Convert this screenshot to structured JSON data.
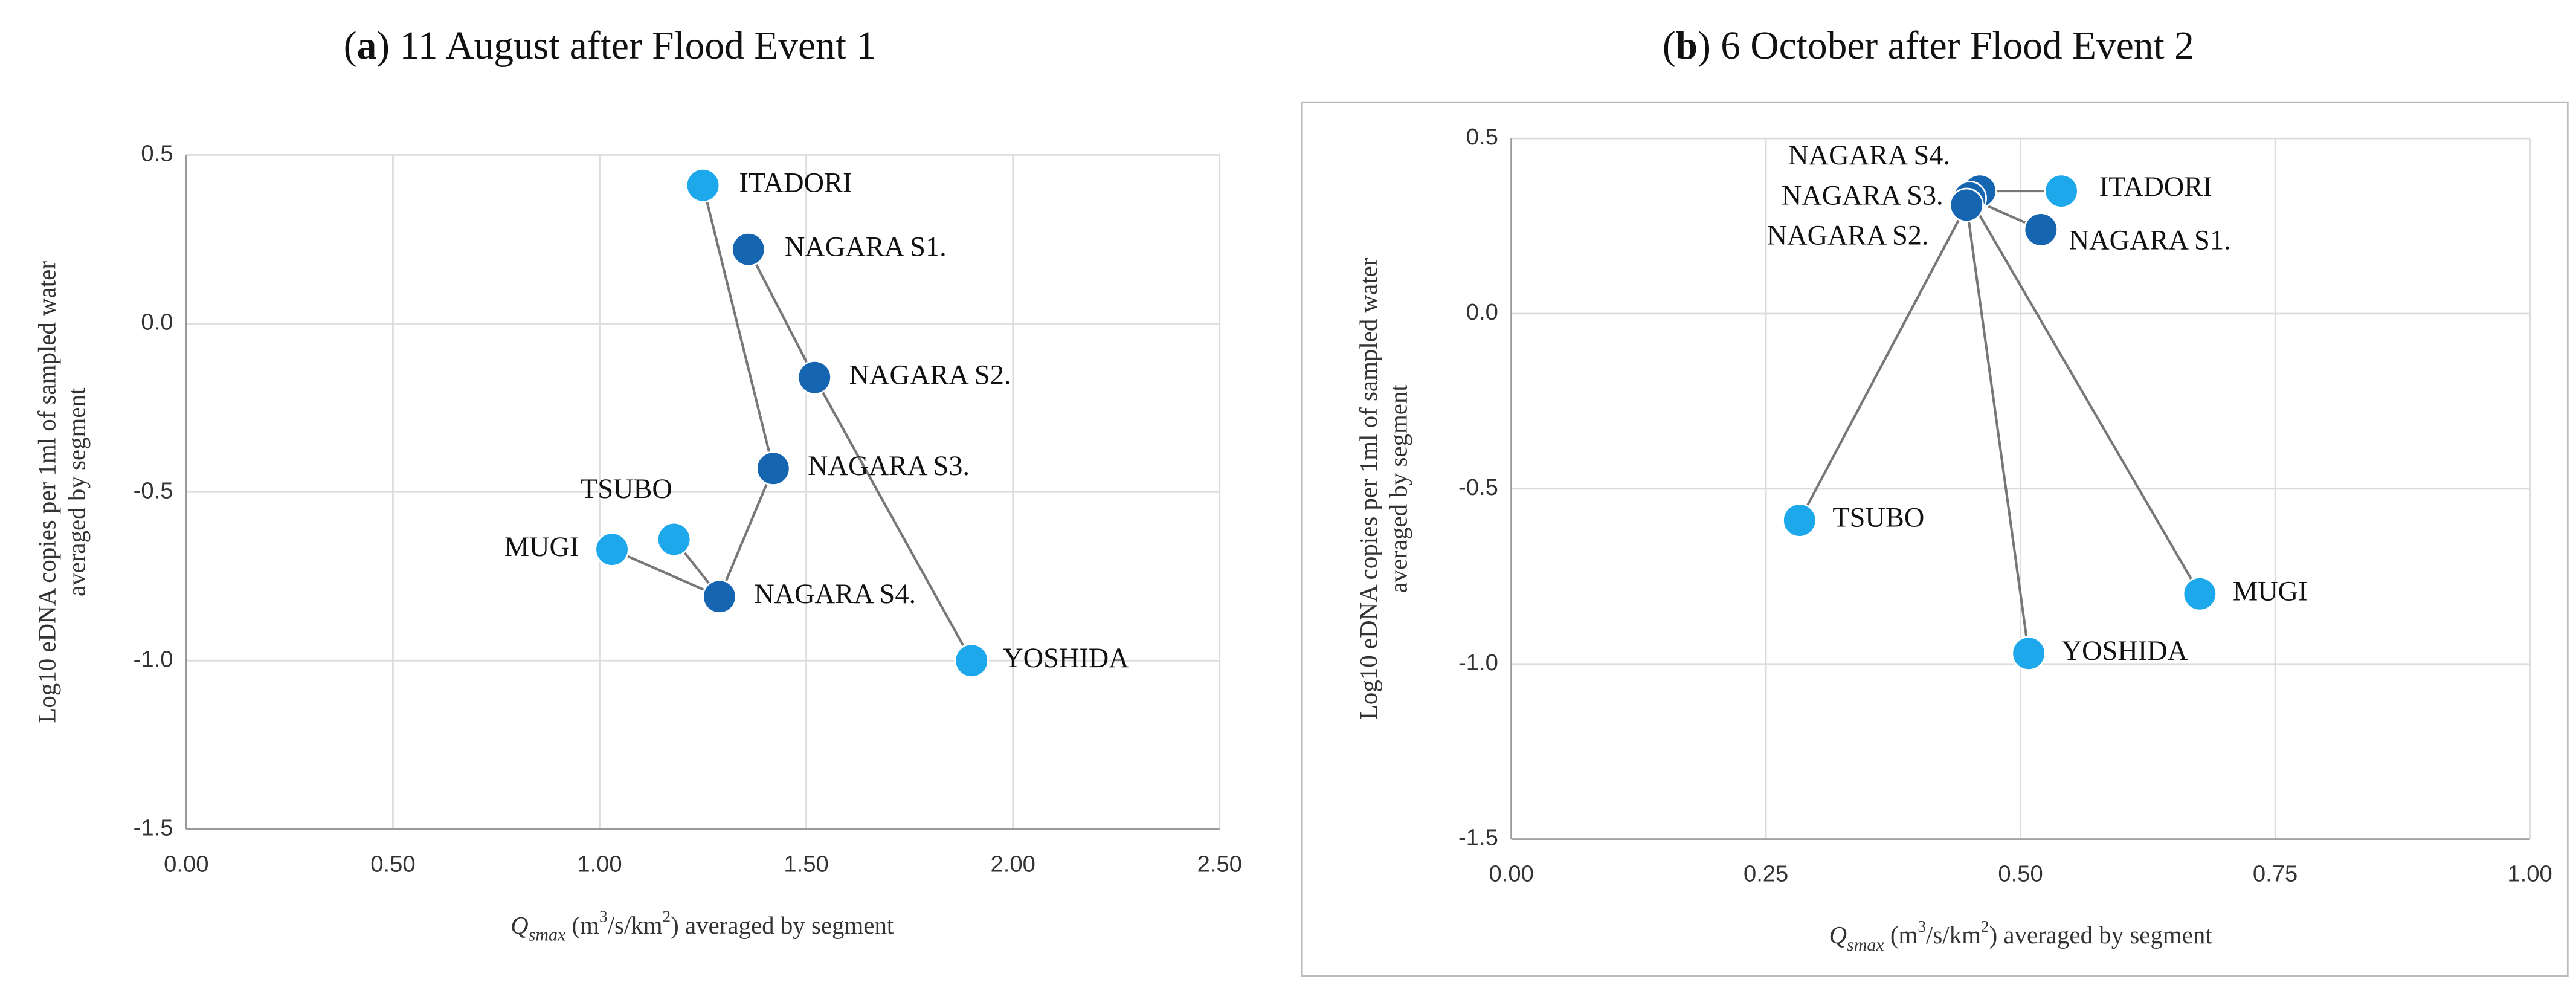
{
  "chart_data": [
    {
      "type": "scatter",
      "title": [
        "(",
        "a",
        ") 11 August after Flood Event 1"
      ],
      "x_label": [
        "Q",
        "smax",
        " (m",
        "3",
        "/s/km",
        "2",
        ") averaged by segment"
      ],
      "y_label": [
        "Log10 eDNA copies per 1ml of sampled water",
        "averaged by segment"
      ],
      "labels": [
        "ITADORI",
        "NAGARA S1.",
        "NAGARA S2.",
        "NAGARA S3.",
        "TSUBO",
        "MUGI",
        "NAGARA S4.",
        "YOSHIDA"
      ],
      "x": [
        1.25,
        1.36,
        1.52,
        1.42,
        1.18,
        1.03,
        1.29,
        1.9
      ],
      "y": [
        0.41,
        0.22,
        -0.16,
        -0.43,
        -0.64,
        -0.67,
        -0.81,
        -1.0
      ],
      "colors": [
        "#1ea8ec",
        "#1565b0",
        "#1565b0",
        "#1565b0",
        "#1ea8ec",
        "#1ea8ec",
        "#1565b0",
        "#1ea8ec"
      ],
      "edges": [
        [
          0,
          3
        ],
        [
          1,
          2
        ],
        [
          2,
          7
        ],
        [
          3,
          6
        ],
        [
          6,
          5
        ],
        [
          6,
          4
        ]
      ],
      "xlim": [
        0,
        2.5
      ],
      "xticks": [
        {
          "value": 0,
          "label": "0.00"
        },
        {
          "value": 0.5,
          "label": "0.50"
        },
        {
          "value": 1,
          "label": "1.00"
        },
        {
          "value": 1.5,
          "label": "1.50"
        },
        {
          "value": 2,
          "label": "2.00"
        },
        {
          "value": 2.5,
          "label": "2.50"
        }
      ],
      "ylim": [
        -1.5,
        0.5
      ],
      "yticks": [
        -1.5,
        {
          "value": -1,
          "label": "-1.0"
        },
        -0.5,
        {
          "value": 0,
          "label": "0.0"
        },
        0.5
      ],
      "grid": true
    },
    {
      "type": "scatter",
      "title": [
        "(",
        "b",
        ") 6 October after Flood Event 2"
      ],
      "x_label": [
        "Q",
        "smax",
        " (m",
        "3",
        "/s/km",
        "2",
        ") averaged by segment"
      ],
      "y_label": [
        "Log10 eDNA copies per 1ml of sampled water",
        "averaged by segment"
      ],
      "labels": [
        "ITADORI",
        "NAGARA S1.",
        "NAGARA S4.",
        "NAGARA S3.",
        "NAGARA S2.",
        "TSUBO",
        "MUGI",
        "YOSHIDA"
      ],
      "x": [
        0.54,
        0.52,
        0.46,
        0.45,
        0.447,
        0.283,
        0.676,
        0.508
      ],
      "y": [
        0.35,
        0.24,
        0.35,
        0.33,
        0.31,
        -0.59,
        -0.8,
        -0.97
      ],
      "colors": [
        "#1ea8ec",
        "#1565b0",
        "#1565b0",
        "#1565b0",
        "#1565b0",
        "#1ea8ec",
        "#1ea8ec",
        "#1ea8ec"
      ],
      "edges": [
        [
          0,
          2
        ],
        [
          1,
          3
        ],
        [
          5,
          4
        ],
        [
          7,
          4
        ],
        [
          6,
          3
        ],
        [
          2,
          4
        ]
      ],
      "xlim": [
        0,
        1
      ],
      "xticks": [
        {
          "value": 0,
          "label": "0.00"
        },
        {
          "value": 0.25,
          "label": "0.25"
        },
        {
          "value": 0.5,
          "label": "0.50"
        },
        {
          "value": 0.75,
          "label": "0.75"
        },
        {
          "value": 1,
          "label": "1.00"
        }
      ],
      "ylim": [
        -1.5,
        0.5
      ],
      "yticks": [
        -1.5,
        {
          "value": -1,
          "label": "-1.0"
        },
        -0.5,
        {
          "value": 0,
          "label": "0.0"
        },
        0.5
      ],
      "grid": true
    }
  ]
}
